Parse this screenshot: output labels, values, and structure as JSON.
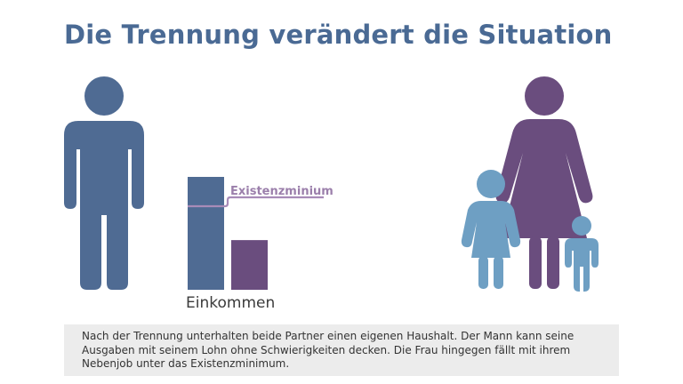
{
  "title": "Die Trennung verändert die Situation",
  "labels": {
    "existenzminimum": "Existenzminium",
    "einkommen": "Einkommen"
  },
  "caption": "Nach der Trennung unterhalten beide Partner einen eigenen Haushalt. Der Mann kann seine Ausgaben mit seinem Lohn ohne Schwierigkeiten decken. Die Frau hingegen fällt mit ihrem Nebenjob unter das Existenzminimum.",
  "chart_data": {
    "type": "bar",
    "categories": [
      "",
      ""
    ],
    "values": [
      1.0,
      0.44
    ],
    "threshold": 0.74,
    "ylim": [
      0,
      1
    ]
  },
  "colors": {
    "man": "#4f6b93",
    "woman": "#6a4d7e",
    "children": "#6e9fc3",
    "threshold_line": "#a88bb8",
    "title": "#4a6a94"
  },
  "icons": [
    "man-icon",
    "woman-icon",
    "child-girl-icon",
    "child-boy-icon"
  ]
}
